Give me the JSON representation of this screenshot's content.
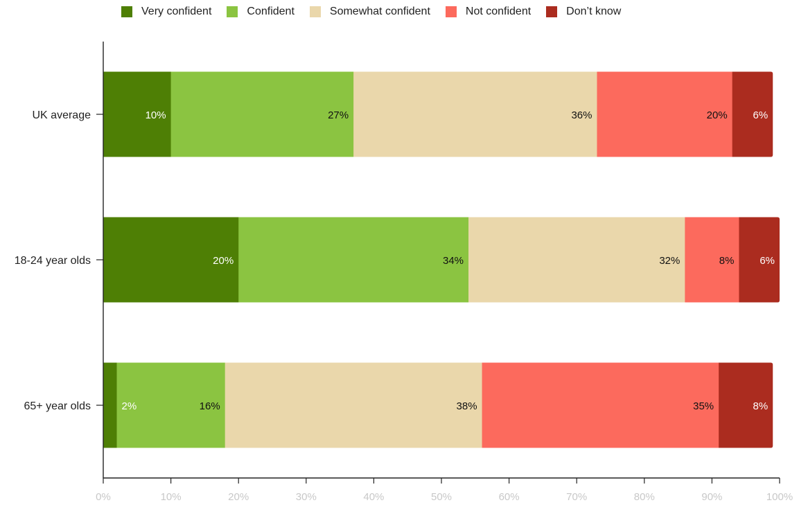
{
  "chart_data": {
    "type": "bar",
    "orientation": "horizontal",
    "stacked": true,
    "categories": [
      "UK average",
      "18-24 year olds",
      "65+ year olds"
    ],
    "series": [
      {
        "name": "Very confident",
        "color": "#4e7f05",
        "values": [
          10,
          20,
          2
        ],
        "labels": [
          "10%",
          "20%",
          "2%"
        ],
        "label_color": "#ffffff"
      },
      {
        "name": "Confident",
        "color": "#8bc441",
        "values": [
          27,
          34,
          16
        ],
        "labels": [
          "27%",
          "34%",
          "16%"
        ],
        "label_color": "#111111"
      },
      {
        "name": "Somewhat confident",
        "color": "#ead7ab",
        "values": [
          36,
          32,
          38
        ],
        "labels": [
          "36%",
          "32%",
          "38%"
        ],
        "label_color": "#111111"
      },
      {
        "name": "Not confident",
        "color": "#fc6a5d",
        "values": [
          20,
          8,
          35
        ],
        "labels": [
          "20%",
          "8%",
          "35%"
        ],
        "label_color": "#111111"
      },
      {
        "name": "Don’t know",
        "color": "#ab2c1f",
        "values": [
          6,
          6,
          8
        ],
        "labels": [
          "6%",
          "6%",
          "8%"
        ],
        "label_color": "#ffffff"
      }
    ],
    "xlim": [
      0,
      100
    ],
    "x_ticks": [
      "0%",
      "10%",
      "20%",
      "30%",
      "40%",
      "50%",
      "60%",
      "70%",
      "80%",
      "90%",
      "100%"
    ],
    "legend_position": "top",
    "grid": false
  }
}
